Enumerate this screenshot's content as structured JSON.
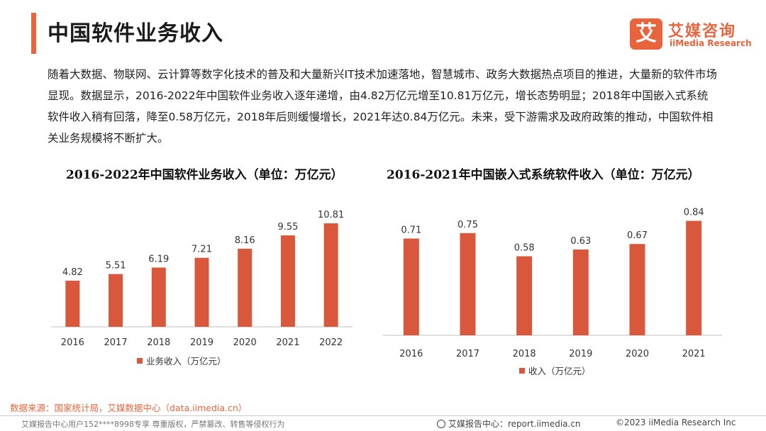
{
  "header": {
    "title": "中国软件业务收入",
    "logo_mark": "艾",
    "logo_cn": "艾媒咨询",
    "logo_en": "iiMedia Research",
    "accent_color": "#e8643c"
  },
  "intro": "随着大数据、物联网、云计算等数字化技术的普及和大量新兴IT技术加速落地，智慧城市、政务大数据热点项目的推进，大量新的软件市场显现。数据显示，2016-2022年中国软件业务收入逐年递增，由4.82万亿元增至10.81万亿元，增长态势明显；2018年中国嵌入式系统软件收入稍有回落，降至0.58万亿元，2018年后则缓慢增长，2021年达0.84万亿元。未来，受下游需求及政府政策的推动，中国软件相关业务规模将不断扩大。",
  "chart_data": [
    {
      "type": "bar",
      "title": "2016-2022年中国软件业务收入（单位：万亿元）",
      "categories": [
        "2016",
        "2017",
        "2018",
        "2019",
        "2020",
        "2021",
        "2022"
      ],
      "values": [
        4.82,
        5.51,
        6.19,
        7.21,
        8.16,
        9.55,
        10.81
      ],
      "labels": [
        "4.82",
        "5.51",
        "6.19",
        "7.21",
        "8.16",
        "9.55",
        "10.81"
      ],
      "legend": "业务收入（万亿元）",
      "legend_position": "bottom-center",
      "ylim": [
        0,
        12
      ],
      "color": "#d9573a",
      "grid": false
    },
    {
      "type": "bar",
      "title": "2016-2021年中国嵌入式系统软件收入（单位：万亿元）",
      "categories": [
        "2016",
        "2017",
        "2018",
        "2019",
        "2020",
        "2021"
      ],
      "values": [
        0.71,
        0.75,
        0.58,
        0.63,
        0.67,
        0.84
      ],
      "labels": [
        "0.71",
        "0.75",
        "0.58",
        "0.63",
        "0.67",
        "0.84"
      ],
      "legend": "收入（万亿元）",
      "legend_position": "bottom-center",
      "ylim": [
        0,
        0.9
      ],
      "color": "#d9573a",
      "grid": false
    }
  ],
  "source": "数据来源：国家统计局，艾媒数据中心（data.iimedia.cn）",
  "footer": {
    "left": "艾媒报告中心用户152****8998专享 尊重版权，严禁篡改、转售等侵权行为",
    "mid": "艾媒报告中心：report.iimedia.cn",
    "right": "©2023  iiMedia Research  Inc"
  }
}
